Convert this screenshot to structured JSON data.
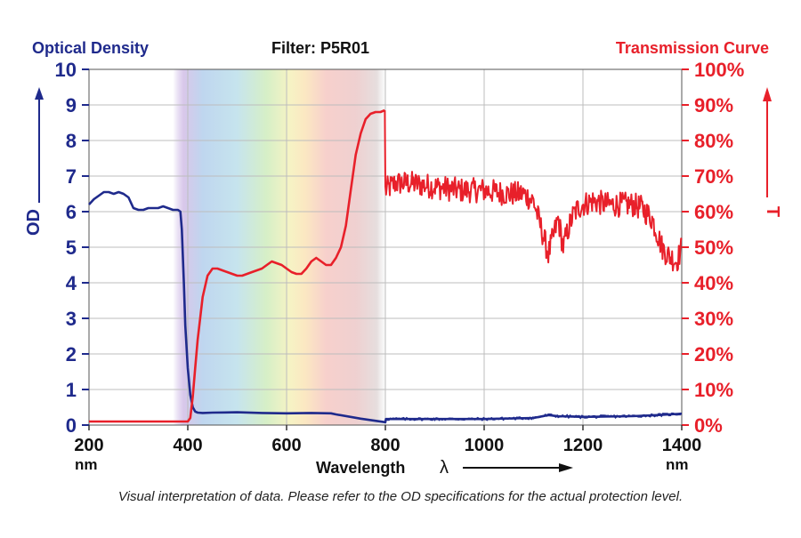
{
  "chart_data": {
    "type": "line",
    "title": "Filter: P5R01",
    "left_axis": {
      "title": "Optical Density",
      "label": "OD",
      "ticks": [
        "0",
        "1",
        "2",
        "3",
        "4",
        "5",
        "6",
        "7",
        "8",
        "9",
        "10"
      ],
      "range": [
        0,
        10
      ],
      "color": "#1f2a8c"
    },
    "right_axis": {
      "title": "Transmission Curve",
      "label": "T",
      "ticks": [
        "0%",
        "10%",
        "20%",
        "30%",
        "40%",
        "50%",
        "60%",
        "70%",
        "80%",
        "90%",
        "100%"
      ],
      "range": [
        0,
        100
      ],
      "color": "#e8202a"
    },
    "x_axis": {
      "label": "Wavelength",
      "symbol": "λ",
      "unit_left": "nm",
      "unit_right": "nm",
      "ticks": [
        "200",
        "400",
        "600",
        "800",
        "1000",
        "1200",
        "1400"
      ],
      "range": [
        200,
        1400
      ]
    },
    "grid": true,
    "visible_band_shading": [
      370,
      800
    ],
    "caption": "Visual interpretation of data. Please refer to the OD specifications for the actual protection level.",
    "series": [
      {
        "axis": "left",
        "color": "#1f2a8c",
        "x": [
          200,
          210,
          220,
          230,
          240,
          250,
          260,
          270,
          280,
          290,
          300,
          310,
          320,
          340,
          350,
          360,
          370,
          380,
          385,
          388,
          392,
          395,
          400,
          405,
          410,
          415,
          420,
          430,
          450,
          500,
          550,
          600,
          650,
          690,
          700,
          750,
          800,
          801,
          850,
          900,
          1000,
          1100,
          1130,
          1150,
          1200,
          1300,
          1350,
          1400
        ],
        "y": [
          6.2,
          6.35,
          6.45,
          6.55,
          6.55,
          6.5,
          6.55,
          6.5,
          6.4,
          6.1,
          6.05,
          6.05,
          6.1,
          6.1,
          6.15,
          6.1,
          6.05,
          6.05,
          6.0,
          5.5,
          4.0,
          2.8,
          1.6,
          0.85,
          0.5,
          0.38,
          0.35,
          0.34,
          0.35,
          0.36,
          0.34,
          0.33,
          0.34,
          0.33,
          0.3,
          0.18,
          0.08,
          0.17,
          0.17,
          0.17,
          0.17,
          0.2,
          0.28,
          0.25,
          0.23,
          0.25,
          0.28,
          0.32
        ]
      },
      {
        "axis": "right",
        "color": "#e8202a",
        "x": [
          200,
          300,
          380,
          395,
          400,
          405,
          410,
          415,
          420,
          425,
          430,
          440,
          450,
          460,
          470,
          480,
          490,
          500,
          510,
          520,
          530,
          540,
          550,
          560,
          570,
          580,
          590,
          600,
          610,
          620,
          630,
          640,
          650,
          660,
          670,
          680,
          690,
          700,
          710,
          720,
          730,
          740,
          750,
          760,
          770,
          780,
          790,
          799
        ],
        "y": [
          1,
          1,
          1,
          1,
          1,
          2,
          8,
          16,
          24,
          30,
          36,
          42,
          44,
          44,
          43.5,
          43,
          42.5,
          42,
          42,
          42.5,
          43,
          43.5,
          44,
          45,
          46,
          45.5,
          45,
          44,
          43,
          42.5,
          42.5,
          44,
          46,
          47,
          46,
          45,
          45,
          47,
          50,
          56,
          66,
          76,
          82,
          86,
          87.5,
          88,
          88,
          88.5
        ]
      }
    ],
    "noisy_segment": {
      "axis": "right",
      "x": [
        800,
        820,
        850,
        900,
        950,
        1000,
        1050,
        1080,
        1100,
        1110,
        1120,
        1130,
        1140,
        1150,
        1160,
        1170,
        1180,
        1190,
        1200,
        1220,
        1250,
        1280,
        1300,
        1320,
        1340,
        1350,
        1360,
        1370,
        1380,
        1390,
        1400
      ],
      "y": [
        66,
        68,
        68,
        67,
        66,
        66,
        65,
        65,
        63,
        58,
        53,
        48,
        53,
        58,
        50,
        55,
        59,
        61,
        62,
        63,
        62,
        62,
        62,
        61,
        58,
        54,
        50,
        48,
        47,
        46,
        50
      ],
      "noise_amplitude": 3.5
    }
  }
}
